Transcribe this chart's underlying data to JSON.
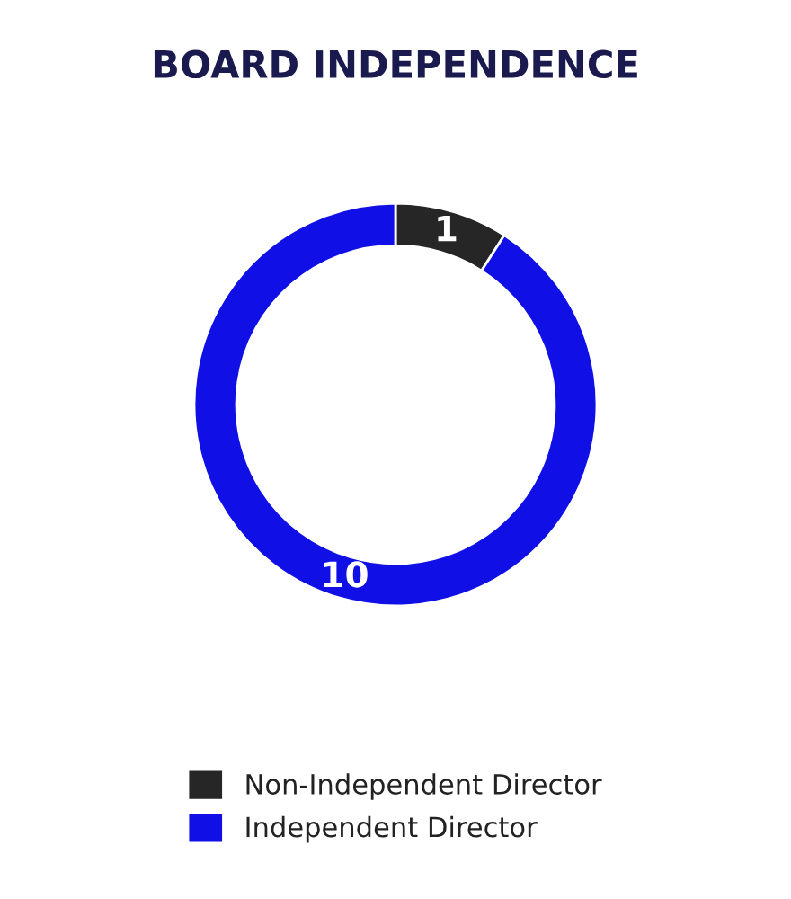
{
  "chart_data": {
    "type": "donut",
    "title": "BOARD INDEPENDENCE",
    "categories": [
      "Non-Independent Director",
      "Independent Director"
    ],
    "values": [
      1,
      10
    ],
    "colors": [
      "#262626",
      "#1010e6"
    ],
    "data_labels": true,
    "legend": "bottom"
  }
}
